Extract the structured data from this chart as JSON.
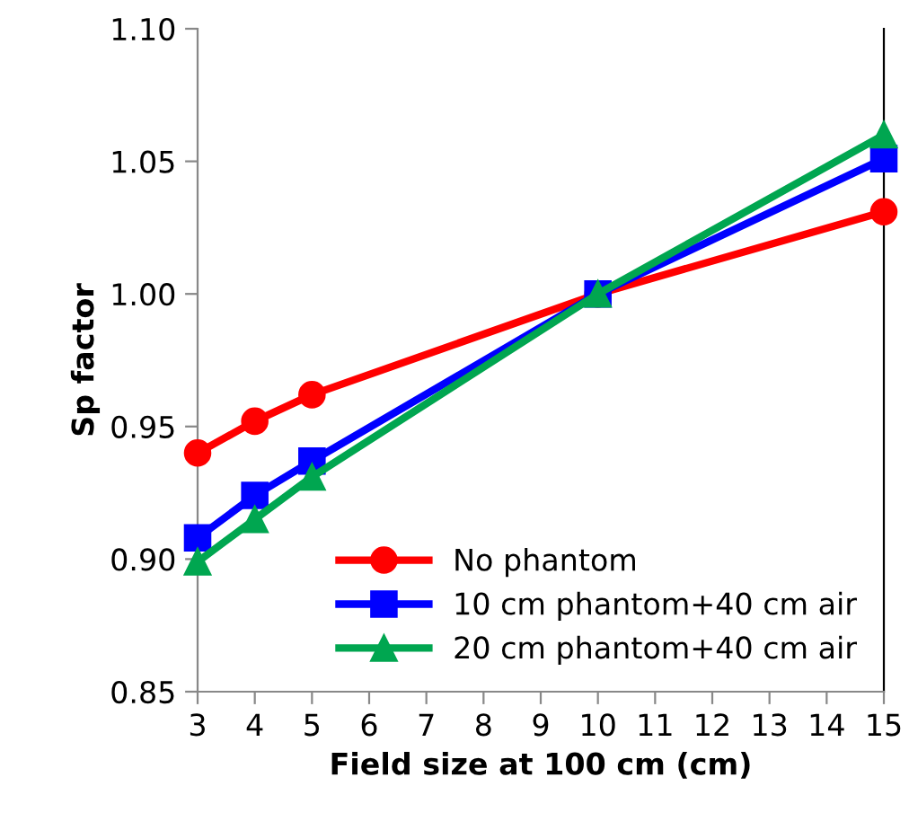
{
  "chart_data": {
    "type": "line",
    "xlabel": "Field size at 100 cm (cm)",
    "ylabel": "Sp factor",
    "xlim": [
      3,
      15
    ],
    "xticks": [
      3,
      4,
      5,
      6,
      7,
      8,
      9,
      10,
      11,
      12,
      13,
      14,
      15
    ],
    "ylim": [
      0.85,
      1.1
    ],
    "yticks": [
      {
        "value": 0.85,
        "label": "0.85"
      },
      {
        "value": 0.9,
        "label": "0.90"
      },
      {
        "value": 0.95,
        "label": "0.95"
      },
      {
        "value": 1.0,
        "label": "1.00"
      },
      {
        "value": 1.05,
        "label": "1.05"
      },
      {
        "value": 1.1,
        "label": "1.10"
      }
    ],
    "grid": false,
    "legend": "bottom right",
    "series": [
      {
        "name": "No phantom",
        "color": "#ff0000",
        "marker": "circle",
        "x": [
          3,
          4,
          5,
          10,
          15
        ],
        "values": [
          0.94,
          0.952,
          0.962,
          1.0,
          1.031
        ]
      },
      {
        "name": "10 cm phantom+40 cm air",
        "color": "#0000ff",
        "marker": "square",
        "x": [
          3,
          4,
          5,
          10,
          15
        ],
        "values": [
          0.908,
          0.924,
          0.937,
          1.0,
          1.051
        ]
      },
      {
        "name": "20 cm phantom+40 cm air",
        "color": "#00a650",
        "marker": "triangle",
        "x": [
          3,
          4,
          5,
          10,
          15
        ],
        "values": [
          0.899,
          0.915,
          0.931,
          1.0,
          1.06
        ]
      }
    ]
  }
}
